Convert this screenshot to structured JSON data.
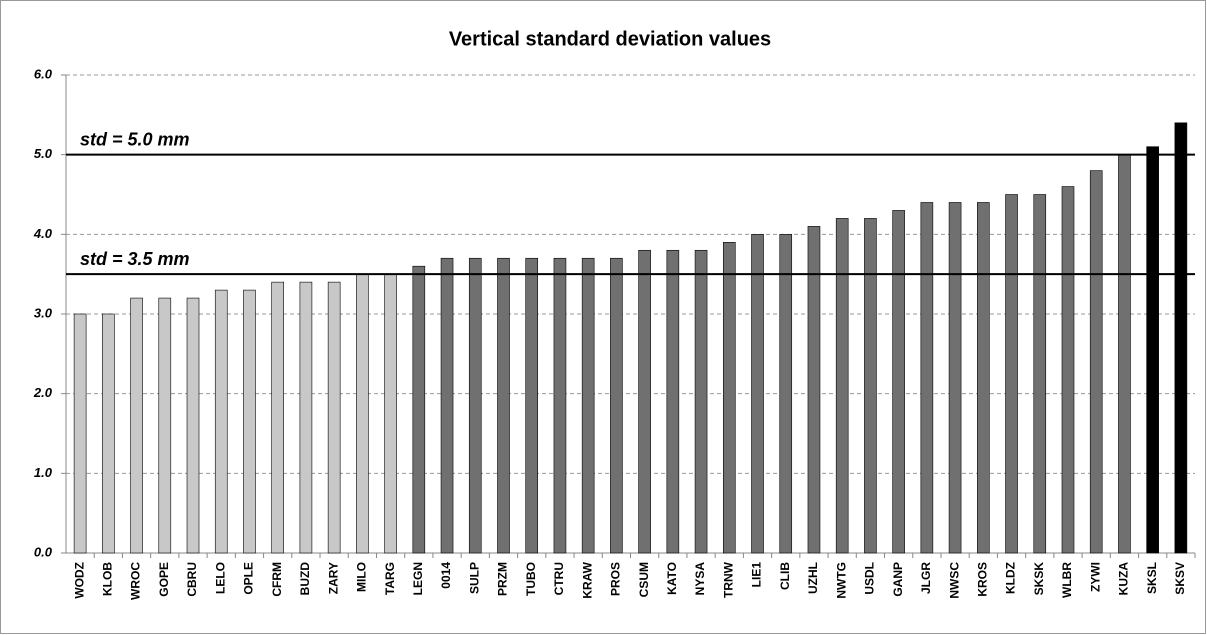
{
  "chart_data": {
    "type": "bar",
    "title": "Vertical standard deviation values",
    "categories": [
      "WODZ",
      "KLOB",
      "WROC",
      "GOPE",
      "CBRU",
      "LELO",
      "OPLE",
      "CFRM",
      "BUZD",
      "ZARY",
      "MILO",
      "TARG",
      "LEGN",
      "0014",
      "SULP",
      "PRZM",
      "TUBO",
      "CTRU",
      "KRAW",
      "PROS",
      "CSUM",
      "KATO",
      "NYSA",
      "TRNW",
      "LIE1",
      "CLIB",
      "UZHL",
      "NWTG",
      "USDL",
      "GANP",
      "JLGR",
      "NWSC",
      "KROS",
      "KLDZ",
      "SKSK",
      "WLBR",
      "ZYWI",
      "KUZA",
      "SKSL",
      "SKSV"
    ],
    "values": [
      3.0,
      3.0,
      3.2,
      3.2,
      3.2,
      3.3,
      3.3,
      3.4,
      3.4,
      3.4,
      3.5,
      3.5,
      3.6,
      3.7,
      3.7,
      3.7,
      3.7,
      3.7,
      3.7,
      3.7,
      3.8,
      3.8,
      3.8,
      3.9,
      4.0,
      4.0,
      4.1,
      4.2,
      4.2,
      4.3,
      4.4,
      4.4,
      4.4,
      4.5,
      4.5,
      4.6,
      4.8,
      5.0,
      5.1,
      5.4
    ],
    "colors": [
      "#c8c8c8",
      "#c8c8c8",
      "#c8c8c8",
      "#c8c8c8",
      "#c8c8c8",
      "#c8c8c8",
      "#c8c8c8",
      "#c8c8c8",
      "#c8c8c8",
      "#c8c8c8",
      "#c8c8c8",
      "#c8c8c8",
      "#707070",
      "#707070",
      "#707070",
      "#707070",
      "#707070",
      "#707070",
      "#707070",
      "#707070",
      "#707070",
      "#707070",
      "#707070",
      "#707070",
      "#707070",
      "#707070",
      "#707070",
      "#707070",
      "#707070",
      "#707070",
      "#707070",
      "#707070",
      "#707070",
      "#707070",
      "#707070",
      "#707070",
      "#707070",
      "#707070",
      "#000000",
      "#000000"
    ],
    "ylim": [
      0,
      6
    ],
    "yticks": [
      {
        "value": 0,
        "label": "0.0"
      },
      {
        "value": 1,
        "label": "1.0"
      },
      {
        "value": 2,
        "label": "2.0"
      },
      {
        "value": 3,
        "label": "3.0"
      },
      {
        "value": 4,
        "label": "4.0"
      },
      {
        "value": 5,
        "label": "5.0"
      },
      {
        "value": 6,
        "label": "6.0"
      }
    ],
    "grid": true,
    "annotations": [
      {
        "value": 5.0,
        "label": "std = 5.0 mm"
      },
      {
        "value": 3.5,
        "label": "std = 3.5 mm"
      }
    ]
  }
}
